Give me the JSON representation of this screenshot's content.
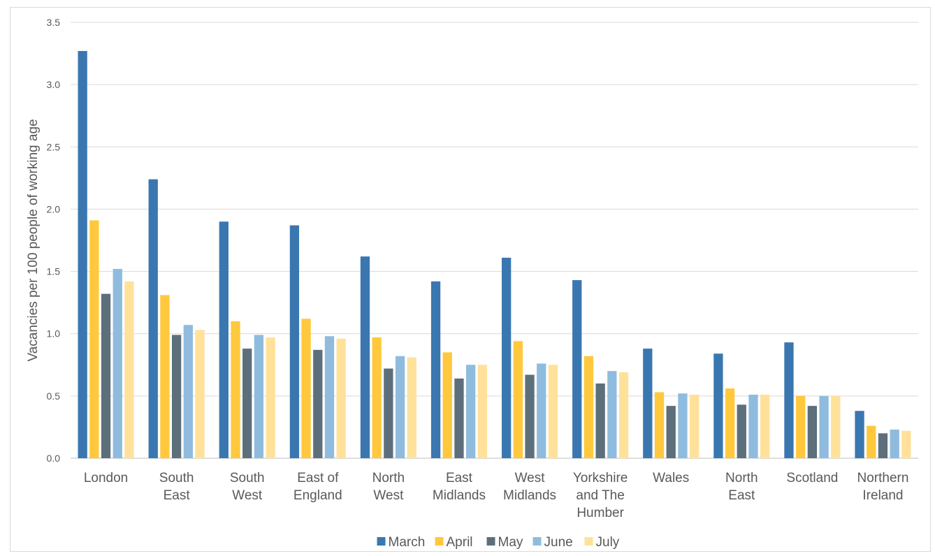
{
  "chart_data": {
    "type": "bar",
    "ylabel": "Vacancies per 100 people of working age",
    "ylim": [
      0,
      3.5
    ],
    "yticks": [
      "0.0",
      "0.5",
      "1.0",
      "1.5",
      "2.0",
      "2.5",
      "3.0",
      "3.5"
    ],
    "grid": true,
    "legend_position": "bottom",
    "categories": [
      [
        "London"
      ],
      [
        "South",
        "East"
      ],
      [
        "South",
        "West"
      ],
      [
        "East of",
        "England"
      ],
      [
        "North",
        "West"
      ],
      [
        "East",
        "Midlands"
      ],
      [
        "West",
        "Midlands"
      ],
      [
        "Yorkshire",
        "and The",
        "Humber"
      ],
      [
        "Wales"
      ],
      [
        "North",
        "East"
      ],
      [
        "Scotland"
      ],
      [
        "Northern",
        "Ireland"
      ]
    ],
    "series": [
      {
        "name": "March",
        "color": "#3a77b0",
        "values": [
          3.27,
          2.24,
          1.9,
          1.87,
          1.62,
          1.42,
          1.61,
          1.43,
          0.88,
          0.84,
          0.93,
          0.38
        ]
      },
      {
        "name": "April",
        "color": "#ffc83d",
        "values": [
          1.91,
          1.31,
          1.1,
          1.12,
          0.97,
          0.85,
          0.94,
          0.82,
          0.53,
          0.56,
          0.5,
          0.26
        ]
      },
      {
        "name": "May",
        "color": "#5d6f7b",
        "values": [
          1.32,
          0.99,
          0.88,
          0.87,
          0.72,
          0.64,
          0.67,
          0.6,
          0.42,
          0.43,
          0.42,
          0.2
        ]
      },
      {
        "name": "June",
        "color": "#8fbcde",
        "values": [
          1.52,
          1.07,
          0.99,
          0.98,
          0.82,
          0.75,
          0.76,
          0.7,
          0.52,
          0.51,
          0.5,
          0.23
        ]
      },
      {
        "name": "July",
        "color": "#ffe19a",
        "values": [
          1.42,
          1.03,
          0.97,
          0.96,
          0.81,
          0.75,
          0.75,
          0.69,
          0.51,
          0.51,
          0.5,
          0.22
        ]
      }
    ]
  }
}
